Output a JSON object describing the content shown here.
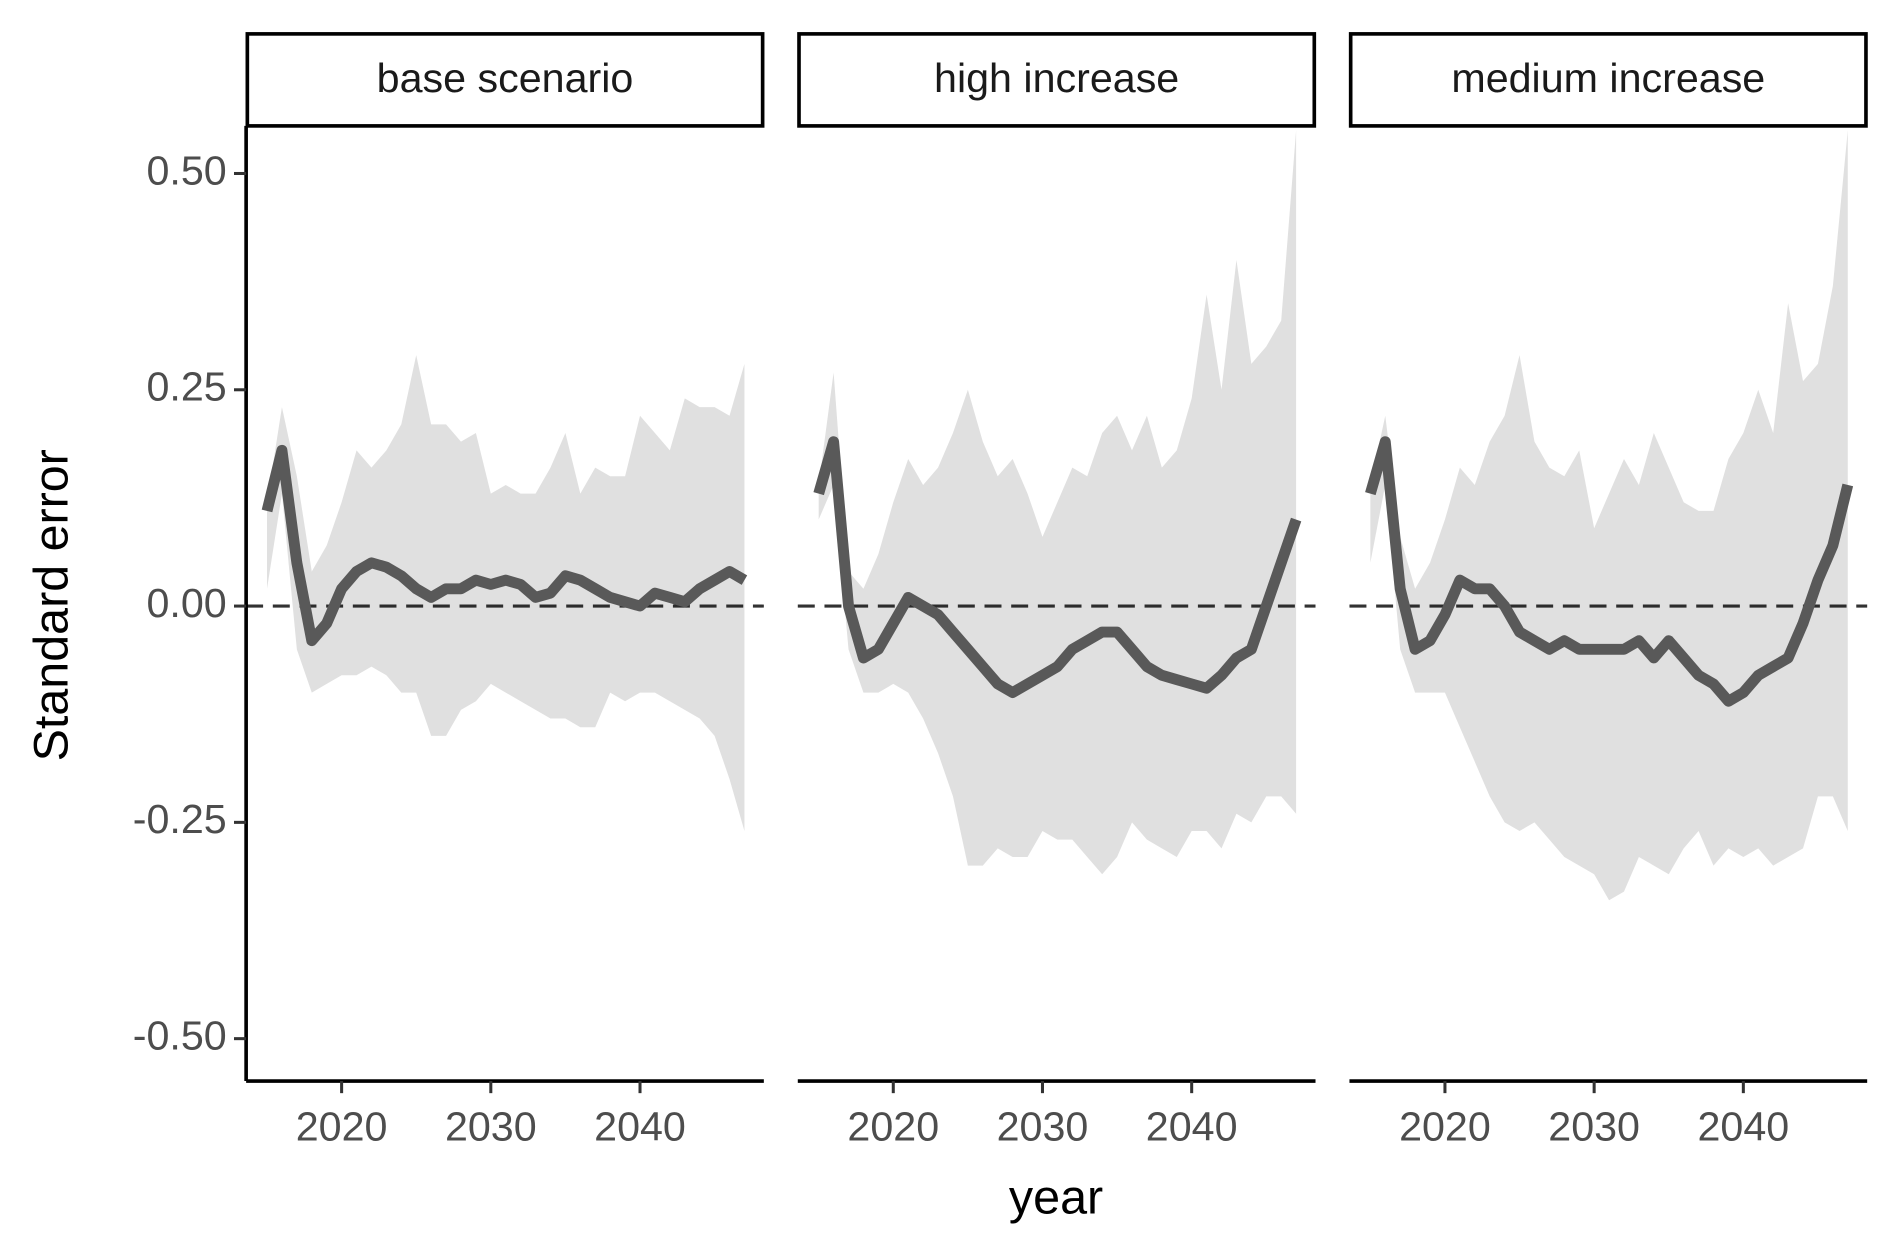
{
  "chart_data": {
    "type": "faceted-ribbon-line",
    "ylabel": "Standard error",
    "xlabel": "year",
    "x": [
      2015,
      2016,
      2017,
      2018,
      2019,
      2020,
      2021,
      2022,
      2023,
      2024,
      2025,
      2026,
      2027,
      2028,
      2029,
      2030,
      2031,
      2032,
      2033,
      2034,
      2035,
      2036,
      2037,
      2038,
      2039,
      2040,
      2041,
      2042,
      2043,
      2044,
      2045,
      2046,
      2047
    ],
    "xlim": [
      2013.6,
      2048.3
    ],
    "xticks": [
      2020,
      2030,
      2040
    ],
    "ylim": [
      -0.549,
      0.555
    ],
    "yticks": [
      {
        "value": 0.5,
        "label": "0.50"
      },
      {
        "value": 0.25,
        "label": "0.25"
      },
      {
        "value": 0,
        "label": "0.00"
      },
      {
        "value": -0.25,
        "label": "-0.25"
      },
      {
        "value": -0.5,
        "label": "-0.50"
      }
    ],
    "reference_line": 0,
    "line_color": "#595959",
    "band_color": "#e0e0e0",
    "panels": [
      {
        "title": "base scenario",
        "mean": [
          0.11,
          0.18,
          0.05,
          -0.04,
          -0.02,
          0.02,
          0.04,
          0.05,
          0.045,
          0.035,
          0.02,
          0.01,
          0.02,
          0.02,
          0.03,
          0.025,
          0.03,
          0.025,
          0.01,
          0.015,
          0.035,
          0.03,
          0.02,
          0.01,
          0.005,
          0.0,
          0.015,
          0.01,
          0.005,
          0.02,
          0.03,
          0.04,
          0.03
        ],
        "upper": [
          0.12,
          0.23,
          0.15,
          0.04,
          0.07,
          0.12,
          0.18,
          0.16,
          0.18,
          0.21,
          0.29,
          0.21,
          0.21,
          0.19,
          0.2,
          0.13,
          0.14,
          0.13,
          0.13,
          0.16,
          0.2,
          0.13,
          0.16,
          0.15,
          0.15,
          0.22,
          0.2,
          0.18,
          0.24,
          0.23,
          0.23,
          0.22,
          0.28
        ],
        "lower": [
          0.02,
          0.13,
          -0.05,
          -0.1,
          -0.09,
          -0.08,
          -0.08,
          -0.07,
          -0.08,
          -0.1,
          -0.1,
          -0.15,
          -0.15,
          -0.12,
          -0.11,
          -0.09,
          -0.1,
          -0.11,
          -0.12,
          -0.13,
          -0.13,
          -0.14,
          -0.14,
          -0.1,
          -0.11,
          -0.1,
          -0.1,
          -0.11,
          -0.12,
          -0.13,
          -0.15,
          -0.2,
          -0.26
        ]
      },
      {
        "title": "high increase",
        "mean": [
          0.13,
          0.19,
          0.0,
          -0.06,
          -0.05,
          -0.02,
          0.01,
          0.0,
          -0.01,
          -0.03,
          -0.05,
          -0.07,
          -0.09,
          -0.1,
          -0.09,
          -0.08,
          -0.07,
          -0.05,
          -0.04,
          -0.03,
          -0.03,
          -0.05,
          -0.07,
          -0.08,
          -0.085,
          -0.09,
          -0.095,
          -0.08,
          -0.06,
          -0.05,
          0.0,
          0.05,
          0.1
        ],
        "upper": [
          0.14,
          0.27,
          0.04,
          0.02,
          0.06,
          0.12,
          0.17,
          0.14,
          0.16,
          0.2,
          0.25,
          0.19,
          0.15,
          0.17,
          0.13,
          0.08,
          0.12,
          0.16,
          0.15,
          0.2,
          0.22,
          0.18,
          0.22,
          0.16,
          0.18,
          0.24,
          0.36,
          0.25,
          0.4,
          0.28,
          0.3,
          0.33,
          0.55
        ],
        "lower": [
          0.1,
          0.14,
          -0.05,
          -0.1,
          -0.1,
          -0.09,
          -0.1,
          -0.13,
          -0.17,
          -0.22,
          -0.3,
          -0.3,
          -0.28,
          -0.29,
          -0.29,
          -0.26,
          -0.27,
          -0.27,
          -0.29,
          -0.31,
          -0.29,
          -0.25,
          -0.27,
          -0.28,
          -0.29,
          -0.26,
          -0.26,
          -0.28,
          -0.24,
          -0.25,
          -0.22,
          -0.22,
          -0.24
        ]
      },
      {
        "title": "medium increase",
        "mean": [
          0.13,
          0.19,
          0.02,
          -0.05,
          -0.04,
          -0.01,
          0.03,
          0.02,
          0.02,
          0.0,
          -0.03,
          -0.04,
          -0.05,
          -0.04,
          -0.05,
          -0.05,
          -0.05,
          -0.05,
          -0.04,
          -0.06,
          -0.04,
          -0.06,
          -0.08,
          -0.09,
          -0.11,
          -0.1,
          -0.08,
          -0.07,
          -0.06,
          -0.02,
          0.03,
          0.07,
          0.14
        ],
        "upper": [
          0.14,
          0.22,
          0.08,
          0.02,
          0.05,
          0.1,
          0.16,
          0.14,
          0.19,
          0.22,
          0.29,
          0.19,
          0.16,
          0.15,
          0.18,
          0.09,
          0.13,
          0.17,
          0.14,
          0.2,
          0.16,
          0.12,
          0.11,
          0.11,
          0.17,
          0.2,
          0.25,
          0.2,
          0.35,
          0.26,
          0.28,
          0.37,
          0.55
        ],
        "lower": [
          0.05,
          0.14,
          -0.05,
          -0.1,
          -0.1,
          -0.1,
          -0.14,
          -0.18,
          -0.22,
          -0.25,
          -0.26,
          -0.25,
          -0.27,
          -0.29,
          -0.3,
          -0.31,
          -0.34,
          -0.33,
          -0.29,
          -0.3,
          -0.31,
          -0.28,
          -0.26,
          -0.3,
          -0.28,
          -0.29,
          -0.28,
          -0.3,
          -0.29,
          -0.28,
          -0.22,
          -0.22,
          -0.26
        ]
      }
    ]
  }
}
